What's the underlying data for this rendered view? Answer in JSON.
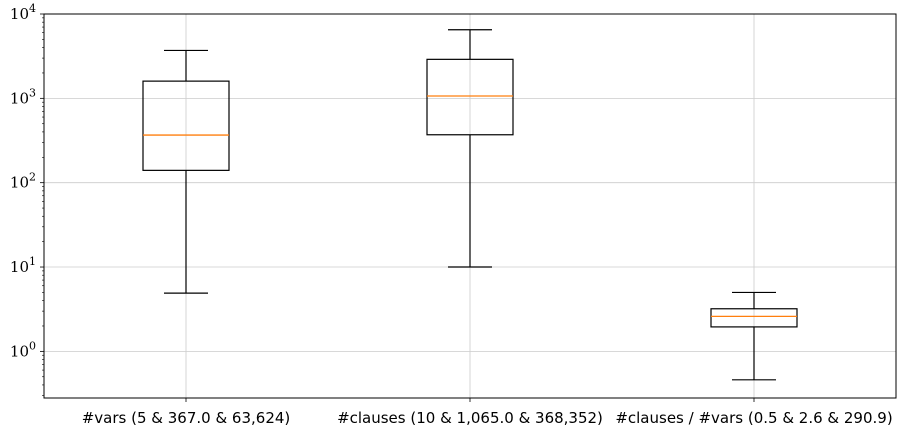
{
  "chart_data": {
    "type": "box",
    "title": "",
    "xlabel": "",
    "ylabel": "",
    "yscale": "log",
    "ylim": [
      0.28,
      10000
    ],
    "grid": true,
    "colors": {
      "box": "#000000",
      "median": "#ff7f0e",
      "grid": "#cccccc"
    },
    "yticks": [
      {
        "value": 1,
        "base": "10",
        "exp": "0"
      },
      {
        "value": 10,
        "base": "10",
        "exp": "1"
      },
      {
        "value": 100,
        "base": "10",
        "exp": "2"
      },
      {
        "value": 1000,
        "base": "10",
        "exp": "3"
      },
      {
        "value": 10000,
        "base": "10",
        "exp": "4"
      }
    ],
    "categories": [
      "#vars (5 & 367.0 & 63,624)",
      "#clauses (10 & 1,065.0 & 368,352)",
      "#clauses / #vars (0.5 & 2.6 & 290.9)"
    ],
    "boxes": [
      {
        "whisker_low": 4.9,
        "q1": 140,
        "median": 367,
        "q3": 1600,
        "whisker_high": 3700
      },
      {
        "whisker_low": 10,
        "q1": 370,
        "median": 1065,
        "q3": 2900,
        "whisker_high": 6500
      },
      {
        "whisker_low": 0.46,
        "q1": 1.95,
        "median": 2.6,
        "q3": 3.2,
        "whisker_high": 5.0
      }
    ]
  }
}
